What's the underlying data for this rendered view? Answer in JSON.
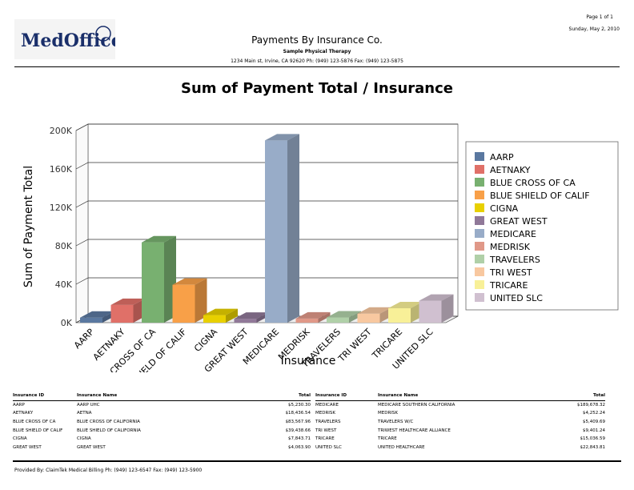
{
  "header": {
    "logo_text": "MedOffice",
    "title": "Payments By Insurance Co.",
    "practice": "Sample Physical Therapy",
    "address": "1234 Main st, Irvine, CA 92620 Ph: (949) 123-5876 Fax: (949) 123-5875",
    "page": "Page 1 of 1",
    "date": "Sunday, May 2, 2010"
  },
  "chart_data": {
    "type": "bar",
    "title": "Sum of Payment Total / Insurance",
    "xlabel": "Insurance",
    "ylabel": "Sum of Payment Total",
    "ylim": [
      0,
      200000
    ],
    "yticks": [
      "0K",
      "40K",
      "80K",
      "120K",
      "160K",
      "200K"
    ],
    "grid": true,
    "legend": "right",
    "categories": [
      "AARP",
      "AETNAKY",
      "BLUE CROSS OF CA",
      "BLUE SHIELD OF CALIF",
      "CIGNA",
      "GREAT WEST",
      "MEDICARE",
      "MEDRISK",
      "TRAVELERS",
      "TRI WEST",
      "TRICARE",
      "UNITED SLC"
    ],
    "values": [
      5230.3,
      18436.54,
      83567.96,
      39438.66,
      7843.71,
      4063.9,
      189678.32,
      4252.24,
      5409.69,
      9401.24,
      15036.59,
      22843.81
    ],
    "colors": [
      "#5a78a0",
      "#e07068",
      "#78b070",
      "#f8a048",
      "#e8d000",
      "#907898",
      "#98acc8",
      "#e09888",
      "#b0d0a8",
      "#f8c8a0",
      "#f8f098",
      "#d0c0d0"
    ]
  },
  "table": {
    "headers": {
      "id": "Insurance ID",
      "name": "Insurance Name",
      "total": "Total"
    },
    "left": [
      {
        "id": "AARP",
        "name": "AARP UHC",
        "total": "$5,230.30"
      },
      {
        "id": "AETNAKY",
        "name": "AETNA",
        "total": "$18,436.54"
      },
      {
        "id": "BLUE CROSS OF CA",
        "name": "BLUE CROSS OF CALIFORNIA",
        "total": "$83,567.96"
      },
      {
        "id": "BLUE SHIELD OF CALIF",
        "name": "BLUE SHIELD OF CALIFORNIA",
        "total": "$39,438.66"
      },
      {
        "id": "CIGNA",
        "name": "CIGNA",
        "total": "$7,843.71"
      },
      {
        "id": "GREAT WEST",
        "name": "GREAT WEST",
        "total": "$4,063.90"
      }
    ],
    "right": [
      {
        "id": "MEDICARE",
        "name": "MEDICARE SOUTHERN CALIFORNIA",
        "total": "$189,678.32"
      },
      {
        "id": "MEDRISK",
        "name": "MEDRISK",
        "total": "$4,252.24"
      },
      {
        "id": "TRAVELERS",
        "name": "TRAVELERS W/C",
        "total": "$5,409.69"
      },
      {
        "id": "TRI WEST",
        "name": "TRIWEST HEALTHCARE ALLIANCE",
        "total": "$9,401.24"
      },
      {
        "id": "TRICARE",
        "name": "TRICARE",
        "total": "$15,036.59"
      },
      {
        "id": "UNITED SLC",
        "name": "UNITED HEALTHCARE",
        "total": "$22,843.81"
      }
    ]
  },
  "footer": "Provided By: ClaimTek Medical Billing Ph: (949) 123-6547 Fax: (949) 123-5900"
}
